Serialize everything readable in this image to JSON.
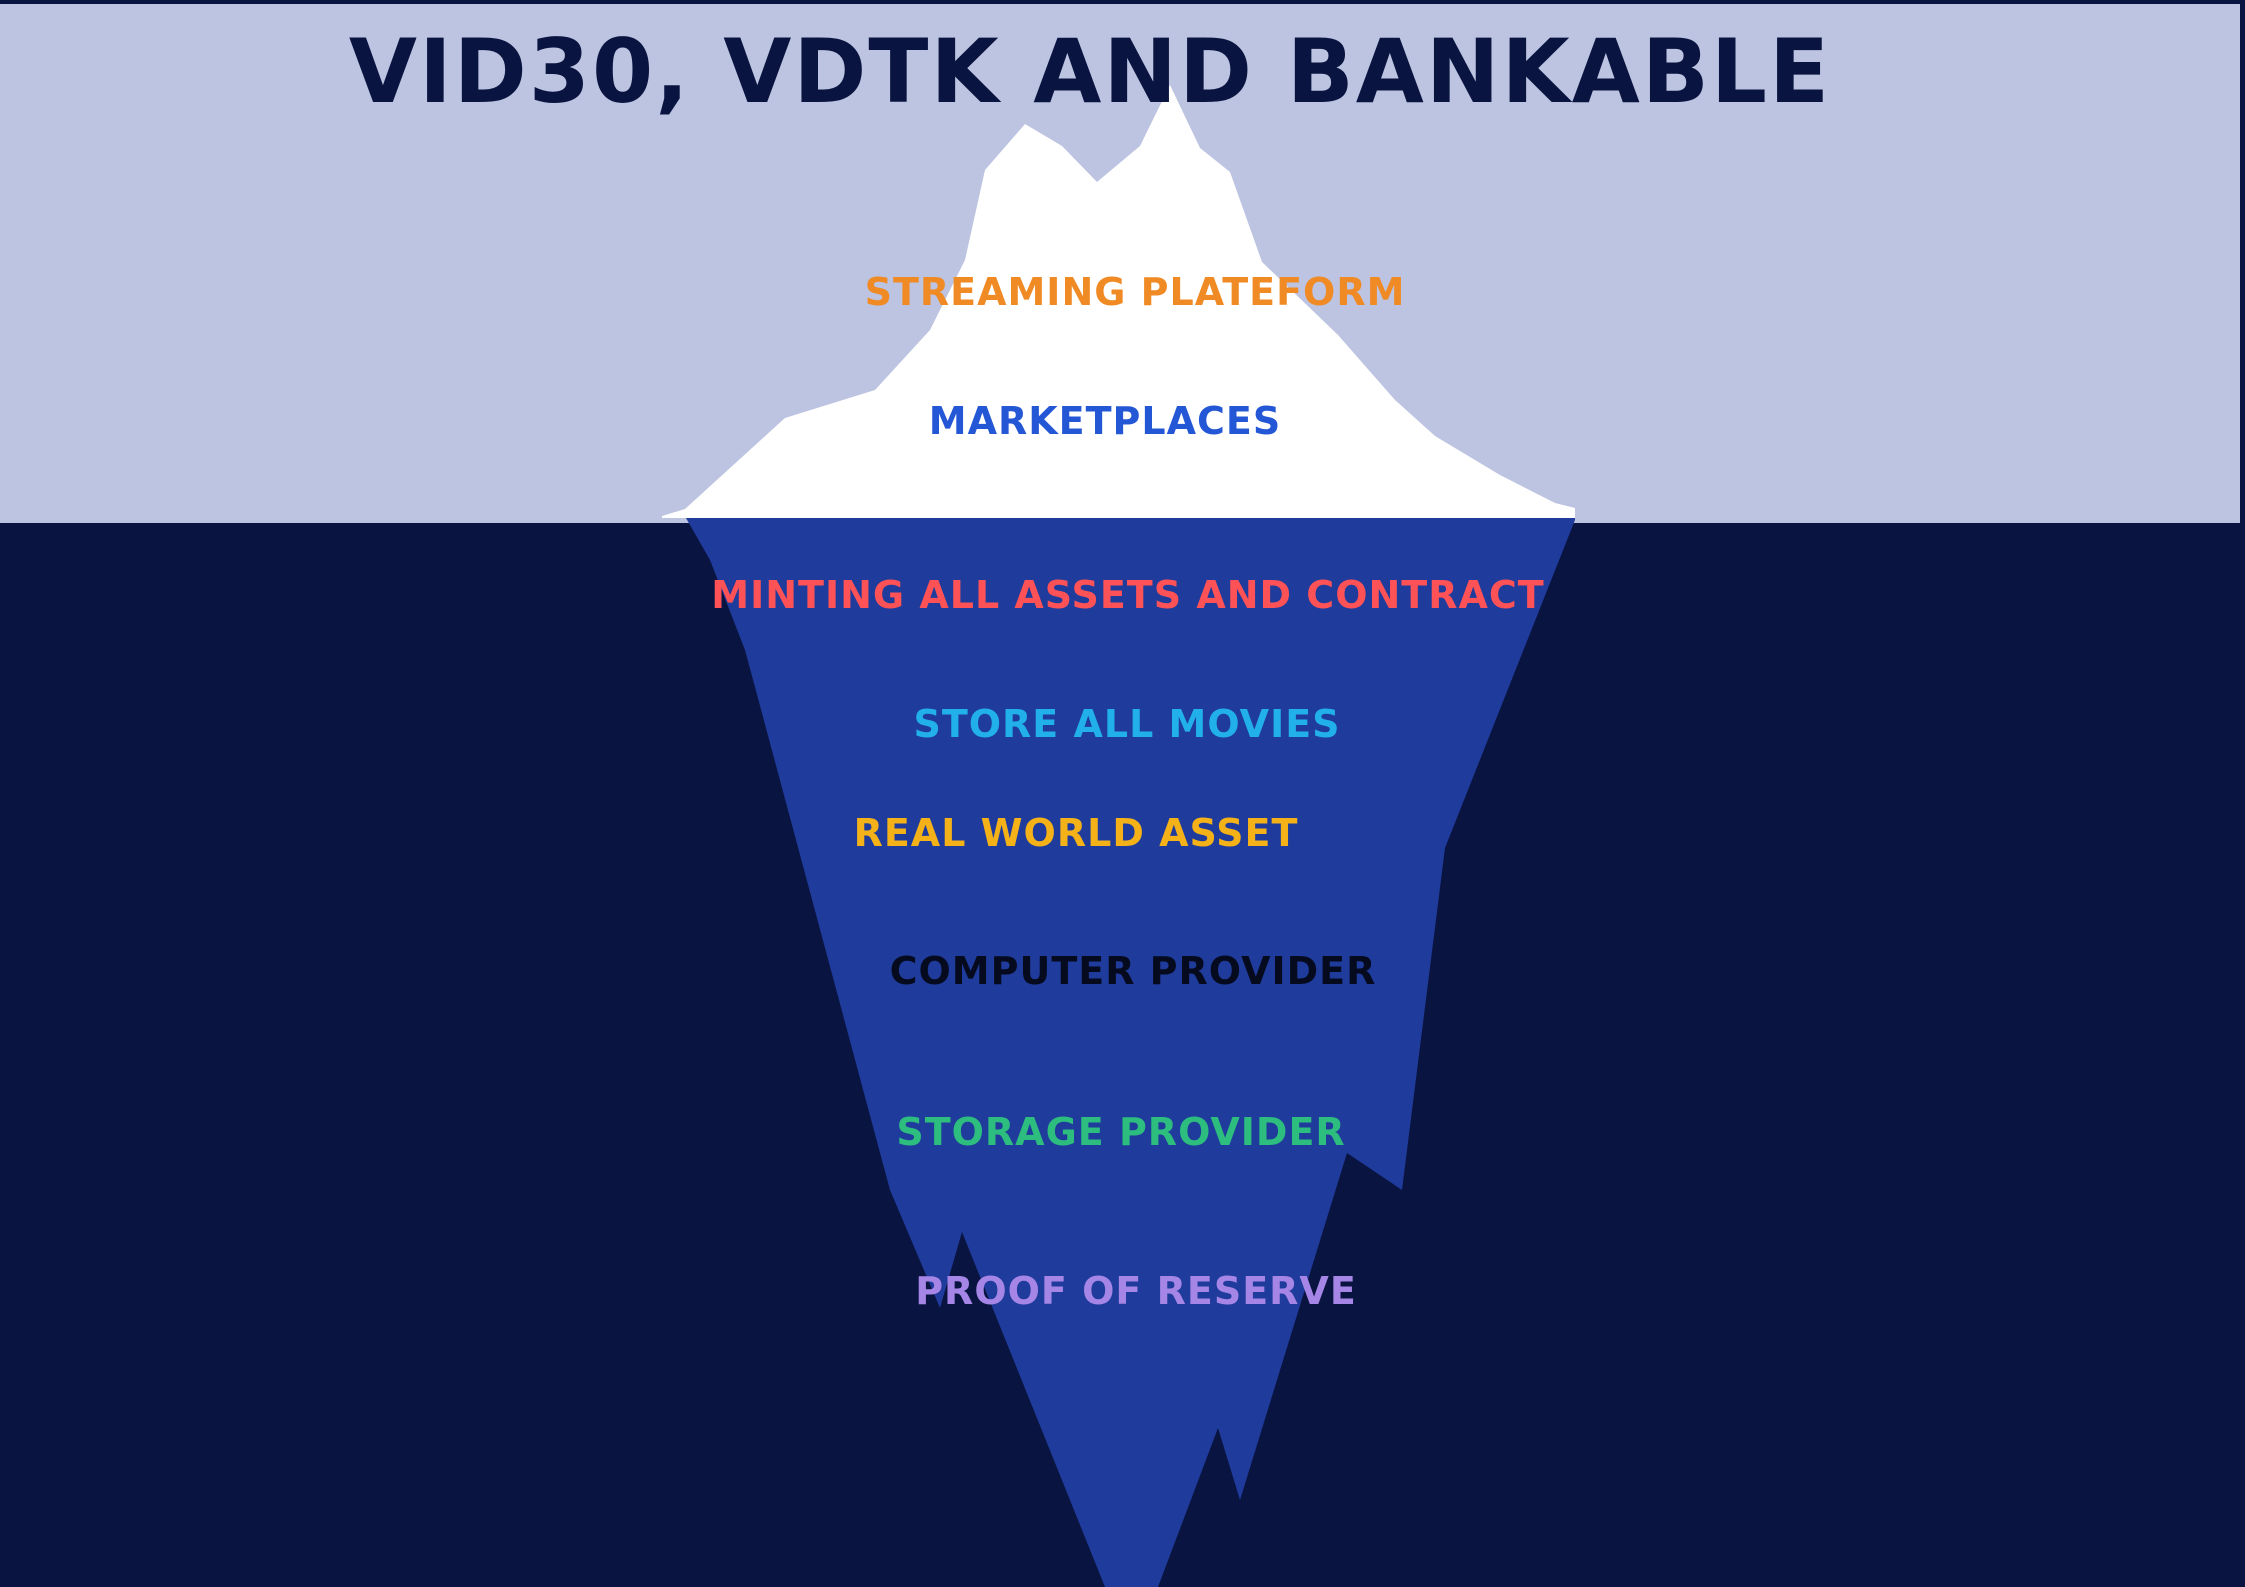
{
  "title": "VID30, VDTK AND BANKABLE",
  "colors": {
    "sky": "#bdc4e1",
    "sea": "#0a1440",
    "ice_above": "#ffffff",
    "ice_below": "#1f3b9b",
    "title": "#0a1440"
  },
  "above_water": [
    {
      "label": "STREAMING PLATEFORM",
      "color": "#f08a24"
    },
    {
      "label": "MARKETPLACES",
      "color": "#2457d6"
    }
  ],
  "below_water": [
    {
      "label": "MINTING ALL ASSETS AND CONTRACT",
      "color": "#ff5257"
    },
    {
      "label": "STORE ALL MOVIES",
      "color": "#22b0ea"
    },
    {
      "label": "REAL WORLD ASSET",
      "color": "#f4b218"
    },
    {
      "label": "COMPUTER PROVIDER",
      "color": "#050a1e"
    },
    {
      "label": "STORAGE PROVIDER",
      "color": "#2cbd7f"
    },
    {
      "label": "PROOF OF RESERVE",
      "color": "#a586e6"
    }
  ]
}
